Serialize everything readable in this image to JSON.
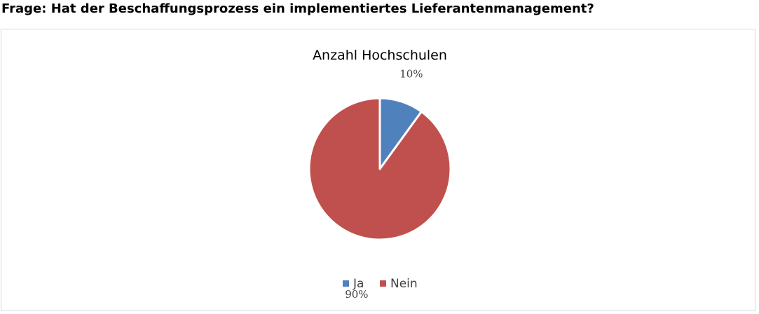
{
  "question": "Frage: Hat der Beschaffungsprozess ein implementiertes Lieferantenmanagement?",
  "chart_data": {
    "type": "pie",
    "title": "Anzahl Hochschulen",
    "categories": [
      "Ja",
      "Nein"
    ],
    "values": [
      10,
      90
    ],
    "data_labels": [
      "10%",
      "90%"
    ],
    "colors": [
      "#4f81bd",
      "#c0504d"
    ],
    "legend": "bottom",
    "legend_entries": [
      "Ja",
      "Nein"
    ]
  }
}
